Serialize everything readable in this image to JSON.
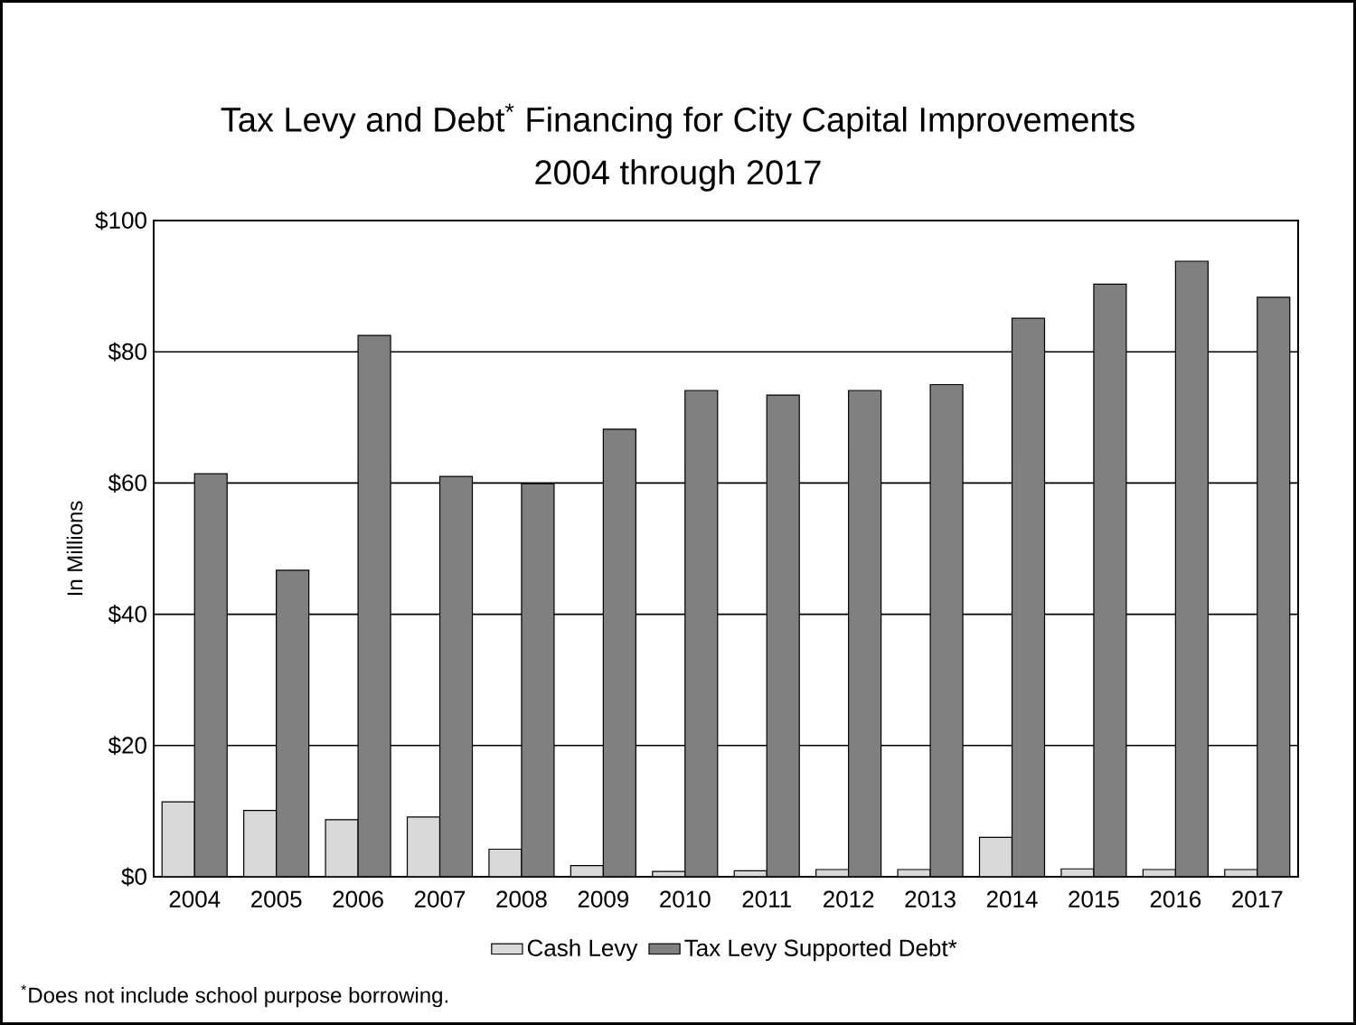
{
  "chart_data": {
    "type": "bar",
    "title": "Tax Levy and Debt$^{*}$ Financing for City Capital Improvements",
    "subtitle": "2004 through 2017",
    "ylabel": "In Millions",
    "categories": [
      "2004",
      "2005",
      "2006",
      "2007",
      "2008",
      "2009",
      "2010",
      "2011",
      "2012",
      "2013",
      "2014",
      "2015",
      "2016",
      "2017"
    ],
    "series": [
      {
        "name": "Cash Levy",
        "color": "#d9d9d9",
        "values": [
          11.4,
          10.1,
          8.7,
          9.1,
          4.2,
          1.7,
          0.8,
          0.9,
          1.1,
          1.1,
          6.0,
          1.2,
          1.1,
          1.1
        ]
      },
      {
        "name": "Tax Levy Supported Debt*",
        "color": "#808080",
        "values": [
          61.4,
          46.7,
          82.5,
          61.0,
          59.9,
          68.2,
          74.1,
          73.4,
          74.1,
          75.0,
          85.1,
          90.3,
          93.8,
          88.3
        ]
      }
    ],
    "ylim": [
      0,
      100
    ],
    "yticks": [
      {
        "value": 0,
        "label": "$0"
      },
      {
        "value": 20,
        "label": "$20"
      },
      {
        "value": 40,
        "label": "$40"
      },
      {
        "value": 60,
        "label": "$60"
      },
      {
        "value": 80,
        "label": "$80"
      },
      {
        "value": 100,
        "label": "$100"
      }
    ],
    "grid": "y",
    "legend": "bottom",
    "annotations": [
      "$^{*}$Does not include school purpose borrowing."
    ]
  }
}
